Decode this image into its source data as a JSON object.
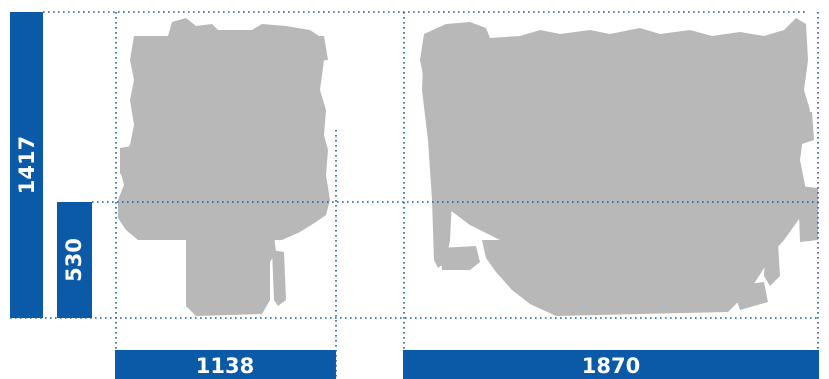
{
  "dimensions": {
    "overall_height": "1417",
    "crank_height": "530",
    "width": "1138",
    "length": "1870"
  },
  "colors": {
    "dimension_bar": "#0a5aa8",
    "guide_line": "#1a5fa6",
    "engine_silhouette": "#b8b8b8",
    "dimension_text": "#ffffff"
  }
}
